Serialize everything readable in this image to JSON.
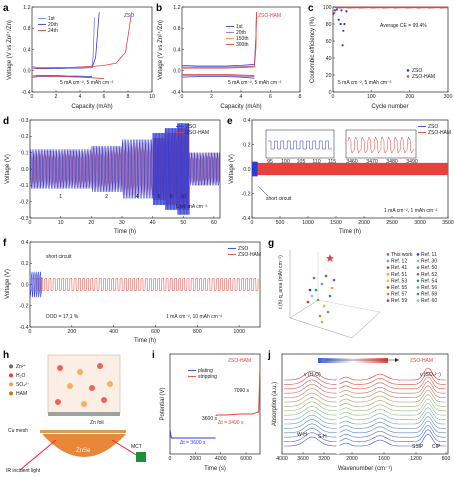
{
  "colors": {
    "zso": "#2c3cd9",
    "ham": "#e8413b",
    "axis": "#222222"
  },
  "panels": {
    "a": {
      "label": "a",
      "xlabel": "Capacity (mAh)",
      "ylabel": "Voltage (V vs Zn²⁺/Zn)",
      "tag": "ZSO",
      "legend": [
        "1st",
        "20th",
        "24th"
      ],
      "condition": "5 mA cm⁻², 5 mAh cm⁻²",
      "xticks": [
        "0",
        "2",
        "4",
        "6",
        "8",
        "10"
      ],
      "yticks": [
        "-0.4",
        "0.0",
        "0.4",
        "0.8",
        "1.2"
      ]
    },
    "b": {
      "label": "b",
      "xlabel": "Capacity (mAh)",
      "ylabel": "Voltage (V vs Zn²⁺/Zn)",
      "tag": "ZSO-HAM",
      "legend": [
        "1st",
        "20th",
        "150th",
        "300th"
      ],
      "condition": "5 mA cm⁻², 5 mAh cm⁻²",
      "xticks": [
        "0",
        "2",
        "4",
        "6",
        "8"
      ],
      "yticks": [
        "-0.4",
        "0.0",
        "0.4",
        "0.8",
        "1.2"
      ]
    },
    "c": {
      "label": "c",
      "xlabel": "Cycle number",
      "ylabel": "Coulombic efficiency (%)",
      "note": "Average CE = 99.4%",
      "condition": "5 mA cm⁻², 5 mAh cm⁻²",
      "legend": [
        "ZSO",
        "ZSO-HAM"
      ],
      "xticks": [
        "0",
        "100",
        "200",
        "300"
      ],
      "yticks": [
        "0",
        "20",
        "40",
        "60",
        "80",
        "100"
      ]
    },
    "d": {
      "label": "d",
      "xlabel": "Time (h)",
      "ylabel": "Voltage (V)",
      "legend": [
        "ZSO",
        "ZSO-HAM"
      ],
      "unit": "Unit: mA cm⁻²",
      "rates": [
        "1",
        "2",
        "4",
        "6",
        "8",
        "10"
      ],
      "xticks": [
        "0",
        "10",
        "20",
        "30",
        "40",
        "50",
        "60"
      ],
      "yticks": [
        "-0.3",
        "-0.2",
        "-0.1",
        "0.0",
        "0.1",
        "0.2",
        "0.3"
      ]
    },
    "e": {
      "label": "e",
      "xlabel": "Time (h)",
      "ylabel": "Voltage (V)",
      "legend": [
        "ZSO",
        "ZSO-HAM"
      ],
      "short": "short circuit",
      "condition": "1 mA cm⁻², 1 mAh cm⁻²",
      "xticks": [
        "0",
        "500",
        "1000",
        "1500",
        "2000",
        "2500",
        "3000",
        "3500"
      ],
      "yticks": [
        "-0.4",
        "-0.2",
        "0.0",
        "0.2",
        "0.4"
      ],
      "inset1_ticks": [
        "95",
        "100",
        "105",
        "110",
        "115"
      ],
      "inset2_ticks": [
        "3460",
        "3470",
        "3480",
        "3490"
      ]
    },
    "f": {
      "label": "f",
      "xlabel": "Time (h)",
      "ylabel": "Voltage (V)",
      "legend": [
        "ZSO",
        "ZSO-HAM"
      ],
      "short": "short circuit",
      "dod": "DOD = 17.1 %",
      "condition": "1 mA cm⁻², 10 mAh cm⁻²",
      "xticks": [
        "0",
        "200",
        "400",
        "600",
        "800",
        "1000"
      ],
      "yticks": [
        "-0.4",
        "-0.2",
        "0.0",
        "0.2",
        "0.4"
      ]
    },
    "g": {
      "label": "g",
      "zlabel": "t (h)·q_area (mAh cm⁻²)",
      "entries": [
        {
          "name": "This work",
          "color": "#e8413b"
        },
        {
          "name": "Ref. 11",
          "color": "#2c3cd9"
        },
        {
          "name": "Ref. 12",
          "color": "#5aa0e0"
        },
        {
          "name": "Ref. 30",
          "color": "#7cc1e8"
        },
        {
          "name": "Ref. 41",
          "color": "#8b6a3a"
        },
        {
          "name": "Ref. 50",
          "color": "#4caf50"
        },
        {
          "name": "Ref. 51",
          "color": "#f29c38"
        },
        {
          "name": "Ref. 52",
          "color": "#9b59b6"
        },
        {
          "name": "Ref. 53",
          "color": "#d4c12a"
        },
        {
          "name": "Ref. 54",
          "color": "#2a8f8f"
        },
        {
          "name": "Ref. 55",
          "color": "#c0392b"
        },
        {
          "name": "Ref. 56",
          "color": "#7f8c8d"
        },
        {
          "name": "Ref. 57",
          "color": "#e67e22"
        },
        {
          "name": "Ref. 58",
          "color": "#16a085"
        },
        {
          "name": "Ref. 59",
          "color": "#8e44ad"
        },
        {
          "name": "Ref. 60",
          "color": "#a3c45c"
        }
      ]
    },
    "h": {
      "label": "h",
      "species": [
        "Zn²⁺",
        "H₂O",
        "SO₄²⁻",
        "HAM"
      ],
      "labels": {
        "zn_foil": "Zn foil",
        "cu_mesh": "Cu mesh",
        "znse": "ZnSe",
        "mct": "MCT",
        "ir": "IR incident light"
      }
    },
    "i": {
      "label": "i",
      "xlabel": "Time (s)",
      "ylabel": "Potential (V)",
      "tag": "ZSO-HAM",
      "legend": [
        "plating",
        "stripping"
      ],
      "notes": [
        "3600 s",
        "7090 s",
        "Δt = 3600 s",
        "Δt = 3490 s"
      ],
      "xticks": [
        "0",
        "2000",
        "4000",
        "6000"
      ]
    },
    "j": {
      "label": "j",
      "xlabel": "Wavenumber (cm⁻¹)",
      "ylabel": "Absorption (a.u.)",
      "tag": "ZSO-HAM",
      "notes": [
        "ν (H₂O)",
        "ν (SO₄²⁻)",
        "W-H",
        "S-H",
        "SSIP",
        "CIP"
      ],
      "xticks": [
        "4000",
        "3600",
        "3200",
        "2000",
        "1600",
        "1200",
        "800"
      ]
    }
  },
  "chart_data": [
    {
      "panel": "a",
      "type": "line",
      "xlabel": "Capacity (mAh)",
      "ylabel": "Voltage (V vs Zn²⁺/Zn)",
      "xlim": [
        0,
        10
      ],
      "ylim": [
        -0.4,
        1.2
      ],
      "series": [
        {
          "name": "1st",
          "x": [
            0,
            0.5,
            1,
            2,
            3,
            4,
            5,
            5.1,
            5.2
          ],
          "y": [
            0.08,
            0.06,
            0.06,
            0.06,
            0.06,
            0.07,
            0.08,
            0.3,
            1.0
          ]
        },
        {
          "name": "20th",
          "x": [
            0,
            0.5,
            1,
            2,
            3,
            4,
            5,
            5.3,
            5.6
          ],
          "y": [
            0.05,
            0.04,
            0.04,
            0.04,
            0.05,
            0.05,
            0.06,
            0.25,
            1.1
          ]
        },
        {
          "name": "24th",
          "x": [
            0,
            1,
            2,
            3,
            4,
            5,
            6,
            7,
            7.8,
            8.3
          ],
          "y": [
            0.05,
            0.05,
            0.06,
            0.06,
            0.07,
            0.08,
            0.1,
            0.14,
            0.35,
            1.1
          ]
        }
      ]
    },
    {
      "panel": "b",
      "type": "line",
      "xlabel": "Capacity (mAh)",
      "ylabel": "Voltage (V vs Zn²⁺/Zn)",
      "xlim": [
        0,
        8
      ],
      "ylim": [
        -0.4,
        1.2
      ],
      "series": [
        {
          "name": "1st",
          "x": [
            0,
            1,
            2,
            3,
            4,
            4.9,
            5,
            5.05
          ],
          "y": [
            0.1,
            0.09,
            0.09,
            0.09,
            0.1,
            0.12,
            0.6,
            1.1
          ]
        },
        {
          "name": "20th",
          "x": [
            0,
            1,
            2,
            3,
            4,
            4.9,
            5,
            5.05
          ],
          "y": [
            0.07,
            0.07,
            0.07,
            0.07,
            0.08,
            0.09,
            0.5,
            1.1
          ]
        },
        {
          "name": "150th",
          "x": [
            0,
            1,
            2,
            3,
            4,
            4.9,
            5,
            5.05
          ],
          "y": [
            0.06,
            0.06,
            0.06,
            0.06,
            0.07,
            0.08,
            0.45,
            1.1
          ]
        },
        {
          "name": "300th",
          "x": [
            0,
            1,
            2,
            3,
            4,
            4.9,
            5,
            5.05
          ],
          "y": [
            0.05,
            0.05,
            0.05,
            0.05,
            0.06,
            0.07,
            0.4,
            1.1
          ]
        }
      ]
    },
    {
      "panel": "c",
      "type": "scatter",
      "xlabel": "Cycle number",
      "ylabel": "Coulombic efficiency (%)",
      "xlim": [
        0,
        300
      ],
      "ylim": [
        0,
        100
      ],
      "series": [
        {
          "name": "ZSO",
          "x": [
            1,
            5,
            10,
            15,
            20,
            22,
            25,
            27,
            30,
            35
          ],
          "y": [
            92,
            96,
            97,
            85,
            80,
            96,
            55,
            72,
            80,
            95
          ]
        },
        {
          "name": "ZSO-HAM",
          "x": [
            1,
            30,
            60,
            90,
            120,
            150,
            180,
            210,
            240,
            270,
            300
          ],
          "y": [
            93,
            99,
            99.5,
            99.3,
            99.6,
            99.4,
            99.5,
            99.2,
            99.6,
            99.4,
            99.5
          ]
        }
      ]
    },
    {
      "panel": "d",
      "type": "line",
      "xlabel": "Time (h)",
      "ylabel": "Voltage (V)",
      "xlim": [
        0,
        62
      ],
      "ylim": [
        -0.3,
        0.3
      ],
      "rate_steps": [
        {
          "rate": 1,
          "t": [
            0,
            20
          ]
        },
        {
          "rate": 2,
          "t": [
            20,
            30
          ]
        },
        {
          "rate": 4,
          "t": [
            30,
            40
          ]
        },
        {
          "rate": 6,
          "t": [
            40,
            44
          ]
        },
        {
          "rate": 8,
          "t": [
            44,
            48
          ]
        },
        {
          "rate": 10,
          "t": [
            48,
            52
          ]
        },
        {
          "rate": 1,
          "t": [
            52,
            62
          ]
        }
      ],
      "series": [
        {
          "name": "ZSO",
          "amplitude": [
            0.12,
            0.14,
            0.18,
            0.22,
            0.25,
            0.28,
            0.1
          ]
        },
        {
          "name": "ZSO-HAM",
          "amplitude": [
            0.11,
            0.13,
            0.16,
            0.19,
            0.22,
            0.25,
            0.1
          ]
        }
      ]
    },
    {
      "panel": "e",
      "type": "line",
      "xlabel": "Time (h)",
      "ylabel": "Voltage (V)",
      "xlim": [
        0,
        3500
      ],
      "ylim": [
        -0.4,
        0.4
      ],
      "series": [
        {
          "name": "ZSO",
          "end_time": 100,
          "amplitude": 0.06
        },
        {
          "name": "ZSO-HAM",
          "end_time": 3500,
          "amplitude": 0.05
        }
      ]
    },
    {
      "panel": "f",
      "type": "line",
      "xlabel": "Time (h)",
      "ylabel": "Voltage (V)",
      "xlim": [
        0,
        1100
      ],
      "ylim": [
        -0.4,
        0.4
      ],
      "series": [
        {
          "name": "ZSO",
          "end_time": 60,
          "amplitude": 0.12
        },
        {
          "name": "ZSO-HAM",
          "end_time": 1100,
          "amplitude": 0.06
        }
      ]
    },
    {
      "panel": "i",
      "type": "line",
      "xlabel": "Time (s)",
      "ylabel": "Potential (V)",
      "xlim": [
        0,
        7100
      ],
      "series": [
        {
          "name": "plating",
          "x": [
            0,
            100,
            1000,
            2000,
            3000,
            3600
          ],
          "y": [
            -0.05,
            -0.09,
            -0.09,
            -0.09,
            -0.09,
            -0.09
          ]
        },
        {
          "name": "stripping",
          "x": [
            3600,
            3700,
            4500,
            5500,
            6500,
            7000,
            7090
          ],
          "y": [
            0.02,
            0.025,
            0.025,
            0.03,
            0.03,
            0.04,
            0.25
          ]
        }
      ]
    },
    {
      "panel": "j",
      "type": "line",
      "xlabel": "Wavenumber (cm⁻¹)",
      "ylabel": "Absorption (a.u.)",
      "xlim": [
        4000,
        700
      ]
    }
  ]
}
